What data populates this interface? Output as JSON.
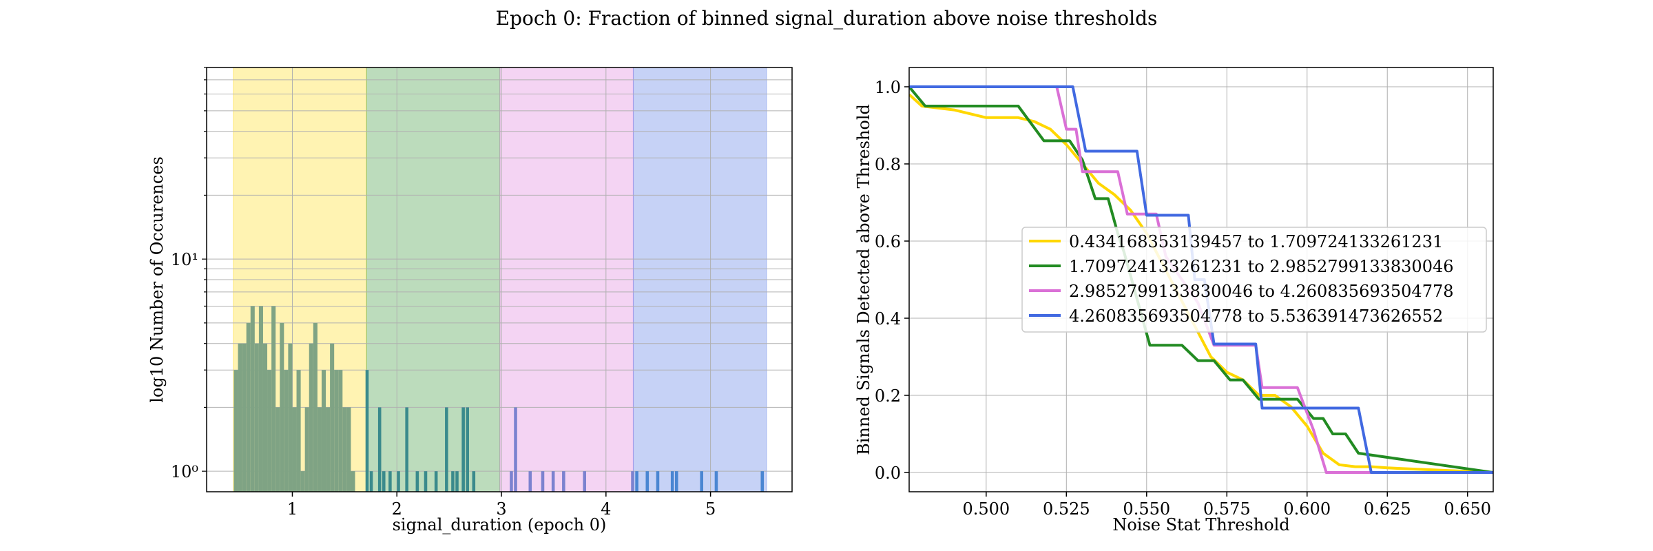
{
  "title": "Epoch 0: Fraction of binned signal_duration above noise thresholds",
  "chart_data": [
    {
      "type": "bar",
      "subtype": "histogram",
      "xlabel": "signal_duration (epoch 0)",
      "ylabel": "log10 Number of Occurences",
      "yscale": "log",
      "xlim": [
        0.18,
        5.78
      ],
      "ylim": [
        0.8,
        80
      ],
      "xticks": [
        1,
        2,
        3,
        4,
        5
      ],
      "yticks": [
        {
          "value": 1,
          "label": "10⁰"
        },
        {
          "value": 10,
          "label": "10¹"
        }
      ],
      "grid": true,
      "bands": [
        {
          "from": 0.434168353139457,
          "to": 1.709724133261231,
          "color": "#FFD700"
        },
        {
          "from": 1.709724133261231,
          "to": 2.9852799133830046,
          "color": "#228B22"
        },
        {
          "from": 2.9852799133830046,
          "to": 4.260835693504778,
          "color": "#DA70D6"
        },
        {
          "from": 4.260835693504778,
          "to": 5.536391473626552,
          "color": "#4169E1"
        }
      ],
      "bar_colors": [
        "#7fa384",
        "#3a8a8c",
        "#7b82cf",
        "#4a86d2"
      ],
      "bins": [
        [
          0.44,
          0.48,
          3
        ],
        [
          0.48,
          0.52,
          4
        ],
        [
          0.52,
          0.56,
          4
        ],
        [
          0.56,
          0.6,
          5
        ],
        [
          0.6,
          0.64,
          6
        ],
        [
          0.64,
          0.68,
          4
        ],
        [
          0.68,
          0.72,
          6
        ],
        [
          0.72,
          0.76,
          4
        ],
        [
          0.76,
          0.8,
          3
        ],
        [
          0.8,
          0.84,
          6
        ],
        [
          0.84,
          0.88,
          2
        ],
        [
          0.88,
          0.92,
          5
        ],
        [
          0.92,
          0.96,
          3
        ],
        [
          0.96,
          1.0,
          4
        ],
        [
          1.0,
          1.04,
          2
        ],
        [
          1.04,
          1.08,
          3
        ],
        [
          1.08,
          1.12,
          1
        ],
        [
          1.12,
          1.16,
          2
        ],
        [
          1.16,
          1.2,
          4
        ],
        [
          1.2,
          1.24,
          5
        ],
        [
          1.24,
          1.28,
          2
        ],
        [
          1.28,
          1.32,
          3
        ],
        [
          1.32,
          1.36,
          2
        ],
        [
          1.36,
          1.4,
          4
        ],
        [
          1.4,
          1.44,
          3
        ],
        [
          1.44,
          1.48,
          3
        ],
        [
          1.48,
          1.52,
          2
        ],
        [
          1.52,
          1.56,
          2
        ],
        [
          1.56,
          1.6,
          1
        ],
        [
          1.7,
          1.73,
          3
        ],
        [
          1.74,
          1.77,
          1
        ],
        [
          1.82,
          1.85,
          2
        ],
        [
          1.86,
          1.89,
          1
        ],
        [
          1.92,
          1.95,
          1
        ],
        [
          2.0,
          2.03,
          1
        ],
        [
          2.08,
          2.11,
          2
        ],
        [
          2.18,
          2.21,
          1
        ],
        [
          2.26,
          2.29,
          1
        ],
        [
          2.36,
          2.39,
          1
        ],
        [
          2.46,
          2.49,
          2
        ],
        [
          2.52,
          2.55,
          1
        ],
        [
          2.56,
          2.59,
          1
        ],
        [
          2.62,
          2.65,
          2
        ],
        [
          2.66,
          2.69,
          2
        ],
        [
          2.72,
          2.75,
          1
        ],
        [
          3.08,
          3.11,
          1
        ],
        [
          3.12,
          3.15,
          2
        ],
        [
          3.26,
          3.29,
          1
        ],
        [
          3.38,
          3.41,
          1
        ],
        [
          3.48,
          3.51,
          1
        ],
        [
          3.58,
          3.61,
          1
        ],
        [
          3.78,
          3.81,
          1
        ],
        [
          4.24,
          4.27,
          1
        ],
        [
          4.28,
          4.31,
          1
        ],
        [
          4.38,
          4.41,
          1
        ],
        [
          4.48,
          4.51,
          1
        ],
        [
          4.62,
          4.65,
          1
        ],
        [
          4.66,
          4.69,
          1
        ],
        [
          4.9,
          4.93,
          1
        ],
        [
          5.04,
          5.07,
          1
        ],
        [
          5.48,
          5.51,
          1
        ]
      ]
    },
    {
      "type": "line",
      "xlabel": "Noise Stat Threshold",
      "ylabel": "Binned Signals Detected above Threshold",
      "xlim": [
        0.476,
        0.658
      ],
      "ylim": [
        -0.05,
        1.05
      ],
      "xticks": [
        0.5,
        0.525,
        0.55,
        0.575,
        0.6,
        0.625,
        0.65
      ],
      "xtick_labels": [
        "0.500",
        "0.525",
        "0.550",
        "0.575",
        "0.600",
        "0.625",
        "0.650"
      ],
      "yticks": [
        0,
        0.2,
        0.4,
        0.6,
        0.8,
        1.0
      ],
      "ytick_labels": [
        "0.0",
        "0.2",
        "0.4",
        "0.6",
        "0.8",
        "1.0"
      ],
      "grid": true,
      "legend_position": "center-right",
      "series": [
        {
          "name": "0.434168353139457 to 1.709724133261231",
          "color": "#FFD700",
          "x": [
            0.476,
            0.48,
            0.49,
            0.5,
            0.51,
            0.515,
            0.52,
            0.525,
            0.53,
            0.535,
            0.54,
            0.545,
            0.55,
            0.555,
            0.56,
            0.565,
            0.57,
            0.575,
            0.58,
            0.585,
            0.59,
            0.595,
            0.6,
            0.605,
            0.61,
            0.615,
            0.62,
            0.625,
            0.63,
            0.658
          ],
          "y": [
            0.98,
            0.95,
            0.94,
            0.92,
            0.92,
            0.91,
            0.89,
            0.85,
            0.8,
            0.75,
            0.72,
            0.68,
            0.62,
            0.54,
            0.46,
            0.38,
            0.3,
            0.26,
            0.24,
            0.2,
            0.2,
            0.17,
            0.12,
            0.05,
            0.02,
            0.015,
            0.015,
            0.012,
            0.01,
            0.0
          ]
        },
        {
          "name": "1.709724133261231 to 2.9852799133830046",
          "color": "#228B22",
          "x": [
            0.476,
            0.481,
            0.495,
            0.51,
            0.518,
            0.526,
            0.53,
            0.532,
            0.534,
            0.538,
            0.541,
            0.543,
            0.551,
            0.561,
            0.566,
            0.571,
            0.576,
            0.58,
            0.585,
            0.59,
            0.597,
            0.602,
            0.605,
            0.608,
            0.612,
            0.616,
            0.658
          ],
          "y": [
            1.0,
            0.95,
            0.95,
            0.95,
            0.86,
            0.86,
            0.81,
            0.76,
            0.71,
            0.71,
            0.62,
            0.57,
            0.33,
            0.33,
            0.29,
            0.29,
            0.24,
            0.24,
            0.19,
            0.19,
            0.19,
            0.14,
            0.14,
            0.1,
            0.1,
            0.05,
            0.0
          ]
        },
        {
          "name": "2.9852799133830046 to 4.260835693504778",
          "color": "#DA70D6",
          "x": [
            0.476,
            0.522,
            0.525,
            0.528,
            0.53,
            0.534,
            0.541,
            0.544,
            0.553,
            0.556,
            0.566,
            0.571,
            0.584,
            0.586,
            0.594,
            0.597,
            0.602,
            0.606,
            0.61,
            0.658
          ],
          "y": [
            1.0,
            1.0,
            0.89,
            0.89,
            0.78,
            0.78,
            0.78,
            0.67,
            0.67,
            0.56,
            0.44,
            0.33,
            0.33,
            0.22,
            0.22,
            0.22,
            0.11,
            0.0,
            0.0,
            0.0
          ]
        },
        {
          "name": "4.260835693504778 to 5.536391473626552",
          "color": "#4169E1",
          "x": [
            0.476,
            0.524,
            0.527,
            0.531,
            0.547,
            0.55,
            0.563,
            0.565,
            0.568,
            0.571,
            0.584,
            0.586,
            0.602,
            0.616,
            0.62,
            0.658
          ],
          "y": [
            1.0,
            1.0,
            1.0,
            0.833,
            0.833,
            0.667,
            0.667,
            0.5,
            0.5,
            0.333,
            0.333,
            0.167,
            0.167,
            0.167,
            0.0,
            0.0
          ]
        }
      ]
    }
  ]
}
